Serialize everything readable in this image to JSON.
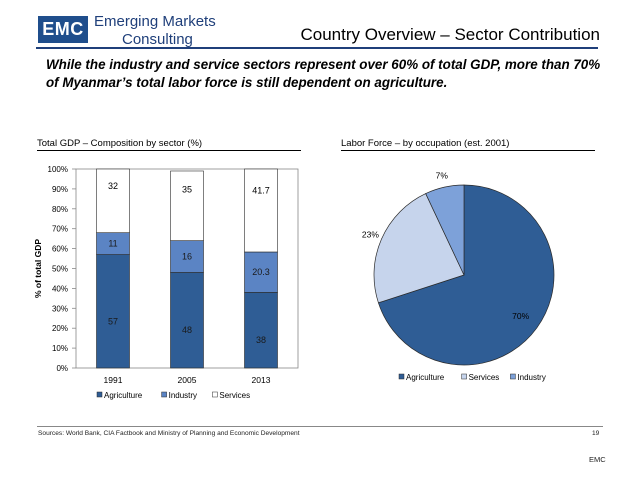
{
  "brand": {
    "logo_text": "EMC",
    "name_line1": "Emerging Markets",
    "name_line2": "Consulting",
    "logo_color": "#1f4e8c"
  },
  "slide": {
    "title": "Country Overview – Sector Contribution",
    "subtitle": "While the industry and service sectors represent over 60% of total GDP, more than 70% of Myanmar’s total labor force is still dependent on agriculture.",
    "sources": "Sources: World Bank, CIA Factbook and Ministry of Planning and Economic Development",
    "page_number": "19",
    "footer_brand": "EMC"
  },
  "chart_data": [
    {
      "type": "bar",
      "stacked": true,
      "header": "Total GDP – Composition by sector (%)",
      "ylabel": "% of total GDP",
      "xlabel": "",
      "ylim": [
        0,
        100
      ],
      "yticks": [
        "0%",
        "10%",
        "20%",
        "30%",
        "40%",
        "50%",
        "60%",
        "70%",
        "80%",
        "90%",
        "100%"
      ],
      "categories": [
        "1991",
        "2005",
        "2013"
      ],
      "series": [
        {
          "name": "Agriculture",
          "color": "#2f5d95",
          "values": [
            57,
            48,
            38
          ],
          "labels": [
            "57",
            "48",
            "38"
          ]
        },
        {
          "name": "Industry",
          "color": "#5b84c4",
          "values": [
            11,
            16,
            20.3
          ],
          "labels": [
            "11",
            "16",
            "20.3"
          ]
        },
        {
          "name": "Services",
          "color": "#ffffff",
          "values": [
            32,
            35,
            41.7
          ],
          "labels": [
            "32",
            "35",
            "41.7"
          ]
        }
      ],
      "legend": "bottom"
    },
    {
      "type": "pie",
      "header": "Labor Force – by occupation (est. 2001)",
      "slices": [
        {
          "name": "Agriculture",
          "value": 70,
          "label": "70%",
          "color": "#2f5d95"
        },
        {
          "name": "Services",
          "value": 23,
          "label": "23%",
          "color": "#c6d4ec"
        },
        {
          "name": "Industry",
          "value": 7,
          "label": "7%",
          "color": "#7da1d9"
        }
      ],
      "legend_order": [
        "Agriculture",
        "Services",
        "Industry"
      ],
      "legend": "bottom"
    }
  ]
}
